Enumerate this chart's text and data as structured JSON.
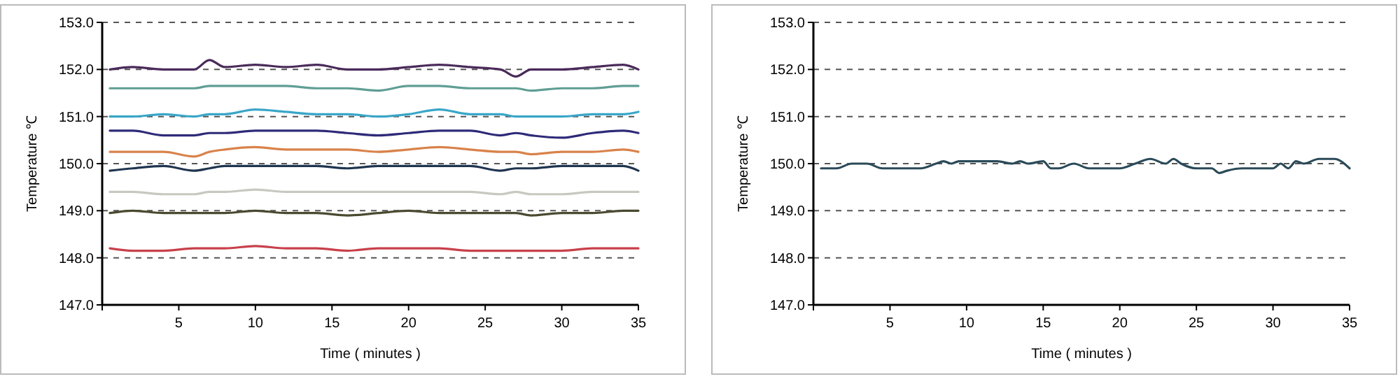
{
  "chart_data": [
    {
      "type": "line",
      "xlabel": "Time ( minutes )",
      "ylabel": "Temperature ℃",
      "xlim": [
        0,
        35
      ],
      "xticks": [
        {
          "value": 0,
          "label": null
        },
        5,
        10,
        15,
        20,
        25,
        30,
        35
      ],
      "ylim": [
        147,
        153
      ],
      "yticks": [
        {
          "value": 147,
          "label": "147.0"
        },
        {
          "value": 148,
          "label": "148.0"
        },
        {
          "value": 149,
          "label": "149.0"
        },
        {
          "value": 150,
          "label": "150.0"
        },
        {
          "value": 151,
          "label": "151.0"
        },
        {
          "value": 152,
          "label": "152.0"
        },
        {
          "value": 153,
          "label": "153.0"
        }
      ],
      "grid": "y",
      "line_style": "solid",
      "x": [
        0.5,
        2,
        4,
        6,
        7,
        8,
        10,
        12,
        14,
        16,
        18,
        20,
        22,
        24,
        26,
        27,
        28,
        30,
        32,
        34,
        35
      ],
      "series": [
        {
          "color": "#4a2a5a",
          "values": [
            152.0,
            152.05,
            152.0,
            152.0,
            152.2,
            152.05,
            152.1,
            152.05,
            152.1,
            152.0,
            152.0,
            152.05,
            152.1,
            152.05,
            152.0,
            151.85,
            152.0,
            152.0,
            152.05,
            152.1,
            152.0
          ]
        },
        {
          "color": "#5f9e94",
          "values": [
            151.6,
            151.6,
            151.6,
            151.6,
            151.65,
            151.65,
            151.65,
            151.65,
            151.6,
            151.6,
            151.55,
            151.65,
            151.65,
            151.6,
            151.6,
            151.6,
            151.55,
            151.6,
            151.6,
            151.65,
            151.65
          ]
        },
        {
          "color": "#3aa6c8",
          "values": [
            151.0,
            151.0,
            151.05,
            151.0,
            151.05,
            151.05,
            151.15,
            151.1,
            151.05,
            151.05,
            151.0,
            151.05,
            151.15,
            151.05,
            151.05,
            151.0,
            151.0,
            151.0,
            151.05,
            151.05,
            151.1
          ]
        },
        {
          "color": "#2e2a78",
          "values": [
            150.7,
            150.7,
            150.6,
            150.6,
            150.65,
            150.65,
            150.7,
            150.7,
            150.7,
            150.65,
            150.6,
            150.65,
            150.7,
            150.7,
            150.6,
            150.65,
            150.6,
            150.55,
            150.65,
            150.7,
            150.65
          ]
        },
        {
          "color": "#d9824a",
          "values": [
            150.25,
            150.25,
            150.25,
            150.15,
            150.25,
            150.3,
            150.35,
            150.3,
            150.3,
            150.3,
            150.25,
            150.3,
            150.35,
            150.3,
            150.25,
            150.25,
            150.2,
            150.25,
            150.25,
            150.3,
            150.25
          ]
        },
        {
          "color": "#1f3550",
          "values": [
            149.85,
            149.9,
            149.95,
            149.85,
            149.9,
            149.95,
            149.95,
            149.95,
            149.95,
            149.9,
            149.95,
            149.95,
            149.95,
            149.95,
            149.85,
            149.9,
            149.9,
            149.95,
            149.95,
            149.95,
            149.85
          ]
        },
        {
          "color": "#c8c8c0",
          "values": [
            149.4,
            149.4,
            149.35,
            149.35,
            149.4,
            149.4,
            149.45,
            149.4,
            149.4,
            149.4,
            149.4,
            149.4,
            149.4,
            149.4,
            149.35,
            149.4,
            149.35,
            149.35,
            149.4,
            149.4,
            149.4
          ]
        },
        {
          "color": "#4a4a30",
          "values": [
            148.95,
            149.0,
            148.95,
            148.95,
            148.95,
            148.95,
            149.0,
            148.95,
            148.95,
            148.9,
            148.95,
            149.0,
            148.95,
            148.95,
            148.95,
            148.95,
            148.9,
            148.95,
            148.95,
            149.0,
            149.0
          ]
        },
        {
          "color": "#c8404a",
          "values": [
            148.2,
            148.15,
            148.15,
            148.2,
            148.2,
            148.2,
            148.25,
            148.2,
            148.2,
            148.15,
            148.2,
            148.2,
            148.2,
            148.15,
            148.15,
            148.15,
            148.15,
            148.15,
            148.2,
            148.2,
            148.2
          ]
        }
      ]
    },
    {
      "type": "line",
      "xlabel": "Time ( minutes )",
      "ylabel": "Temperature ℃",
      "xlim": [
        0,
        35
      ],
      "xticks": [
        {
          "value": 0,
          "label": null
        },
        5,
        10,
        15,
        20,
        25,
        30,
        35
      ],
      "ylim": [
        147,
        153
      ],
      "yticks": [
        {
          "value": 147,
          "label": "147.0"
        },
        {
          "value": 148,
          "label": "148.0"
        },
        {
          "value": 149,
          "label": "149.0"
        },
        {
          "value": 150,
          "label": "150.0"
        },
        {
          "value": 151,
          "label": "151.0"
        },
        {
          "value": 152,
          "label": "152.0"
        },
        {
          "value": 153,
          "label": "153.0"
        }
      ],
      "grid": "y",
      "line_style": "solid",
      "x": [
        0.5,
        1.5,
        2.5,
        3.5,
        4.5,
        7,
        8,
        8.5,
        9,
        9.5,
        12,
        13,
        13.5,
        14,
        15,
        15.5,
        16,
        17,
        18,
        20,
        21,
        22,
        23,
        23.5,
        24,
        25,
        26,
        26.5,
        27,
        28,
        30,
        30.5,
        31,
        31.5,
        32,
        33,
        34,
        35
      ],
      "series": [
        {
          "color": "#2a4a58",
          "values": [
            149.9,
            149.9,
            150.0,
            150.0,
            149.9,
            149.9,
            150.0,
            150.05,
            150.0,
            150.05,
            150.05,
            150.0,
            150.05,
            150.0,
            150.05,
            149.9,
            149.9,
            150.0,
            149.9,
            149.9,
            150.0,
            150.1,
            150.0,
            150.1,
            150.0,
            149.9,
            149.9,
            149.8,
            149.85,
            149.9,
            149.9,
            150.0,
            149.9,
            150.05,
            150.0,
            150.1,
            150.1,
            149.9
          ]
        }
      ]
    }
  ]
}
